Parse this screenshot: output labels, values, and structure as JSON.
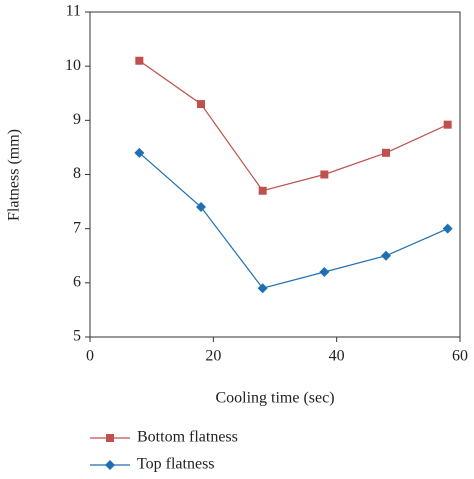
{
  "chart_data": {
    "type": "line",
    "x_label": "Cooling time (sec)",
    "y_label": "Flatness (mm)",
    "x": [
      8,
      18,
      28,
      38,
      48,
      58
    ],
    "series": [
      {
        "name": "Bottom flatness",
        "color": "#c0504d",
        "marker": "square",
        "values": [
          10.1,
          9.3,
          7.7,
          8.0,
          8.4,
          8.92
        ]
      },
      {
        "name": "Top flatness",
        "color": "#1f6fb4",
        "marker": "diamond",
        "values": [
          8.4,
          7.4,
          5.9,
          6.2,
          6.5,
          7.0
        ]
      }
    ],
    "xlim": [
      0,
      60
    ],
    "xticks": [
      0,
      20,
      40,
      60
    ],
    "ylim": [
      5,
      11
    ],
    "yticks": [
      5,
      6,
      7,
      8,
      9,
      10,
      11
    ],
    "legend": "bottom"
  }
}
